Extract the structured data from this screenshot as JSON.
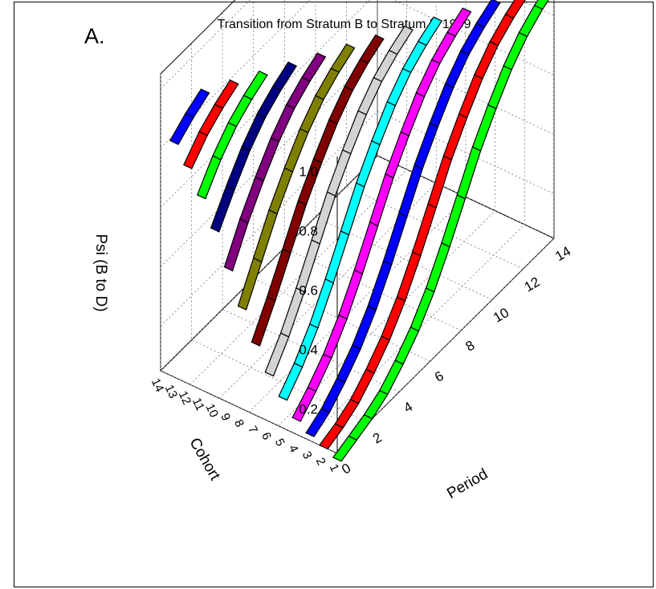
{
  "panel_label": "A.",
  "chart_data": {
    "type": "surface-3d",
    "title": "Transition from Stratum B to Stratum D 1999",
    "xlabel": "Period",
    "ylabel": "Cohort",
    "zlabel": "Psi (B to D)",
    "x_ticks": [
      0,
      2,
      4,
      6,
      8,
      10,
      12,
      14
    ],
    "y_ticks": [
      1,
      2,
      3,
      4,
      5,
      6,
      7,
      8,
      9,
      10,
      11,
      12,
      13,
      14
    ],
    "z_ticks": [
      "0.2",
      "0.4",
      "0.6",
      "0.8",
      "1.0"
    ],
    "xlim": [
      0,
      14
    ],
    "ylim": [
      1,
      14
    ],
    "zlim": [
      0.05,
      1.05
    ],
    "grid": true,
    "series": [
      {
        "cohort": 1,
        "color": "#00ff00",
        "x": [
          0,
          1,
          2,
          3,
          4,
          5,
          6,
          7,
          8,
          9,
          10,
          11,
          12,
          13,
          14
        ],
        "values": [
          0.03,
          0.05,
          0.07,
          0.1,
          0.15,
          0.21,
          0.29,
          0.39,
          0.5,
          0.61,
          0.7,
          0.78,
          0.84,
          0.88,
          0.91
        ]
      },
      {
        "cohort": 2,
        "color": "#ff0000",
        "x": [
          0,
          1,
          2,
          3,
          4,
          5,
          6,
          7,
          8,
          9,
          10,
          11,
          12,
          13
        ],
        "values": [
          0.05,
          0.07,
          0.1,
          0.15,
          0.21,
          0.29,
          0.39,
          0.5,
          0.61,
          0.7,
          0.78,
          0.84,
          0.88,
          0.91
        ]
      },
      {
        "cohort": 3,
        "color": "#0000ff",
        "x": [
          0,
          1,
          2,
          3,
          4,
          5,
          6,
          7,
          8,
          9,
          10,
          11,
          12
        ],
        "values": [
          0.07,
          0.1,
          0.15,
          0.21,
          0.29,
          0.39,
          0.5,
          0.61,
          0.7,
          0.78,
          0.84,
          0.88,
          0.91
        ]
      },
      {
        "cohort": 4,
        "color": "#ff00ff",
        "x": [
          0,
          1,
          2,
          3,
          4,
          5,
          6,
          7,
          8,
          9,
          10,
          11
        ],
        "values": [
          0.1,
          0.15,
          0.21,
          0.29,
          0.39,
          0.5,
          0.61,
          0.7,
          0.78,
          0.84,
          0.88,
          0.91
        ]
      },
      {
        "cohort": 5,
        "color": "#00ffff",
        "x": [
          0,
          1,
          2,
          3,
          4,
          5,
          6,
          7,
          8,
          9,
          10
        ],
        "values": [
          0.15,
          0.21,
          0.29,
          0.39,
          0.5,
          0.61,
          0.7,
          0.78,
          0.84,
          0.88,
          0.91
        ]
      },
      {
        "cohort": 6,
        "color": "#d3d3d3",
        "x": [
          0,
          1,
          2,
          3,
          4,
          5,
          6,
          7,
          8,
          9
        ],
        "values": [
          0.21,
          0.29,
          0.39,
          0.5,
          0.61,
          0.7,
          0.78,
          0.84,
          0.88,
          0.91
        ]
      },
      {
        "cohort": 7,
        "color": "#800000",
        "x": [
          0,
          1,
          2,
          3,
          4,
          5,
          6,
          7,
          8
        ],
        "values": [
          0.29,
          0.39,
          0.5,
          0.61,
          0.7,
          0.78,
          0.84,
          0.88,
          0.91
        ]
      },
      {
        "cohort": 8,
        "color": "#808000",
        "x": [
          0,
          1,
          2,
          3,
          4,
          5,
          6,
          7
        ],
        "values": [
          0.39,
          0.5,
          0.61,
          0.7,
          0.78,
          0.84,
          0.88,
          0.91
        ]
      },
      {
        "cohort": 9,
        "color": "#800080",
        "x": [
          0,
          1,
          2,
          3,
          4,
          5,
          6
        ],
        "values": [
          0.5,
          0.61,
          0.7,
          0.78,
          0.84,
          0.88,
          0.91
        ]
      },
      {
        "cohort": 10,
        "color": "#000080",
        "x": [
          0,
          1,
          2,
          3,
          4,
          5
        ],
        "values": [
          0.61,
          0.7,
          0.78,
          0.84,
          0.88,
          0.91
        ]
      },
      {
        "cohort": 11,
        "color": "#00ff00",
        "x": [
          0,
          1,
          2,
          3,
          4
        ],
        "values": [
          0.7,
          0.78,
          0.84,
          0.88,
          0.91
        ]
      },
      {
        "cohort": 12,
        "color": "#ff0000",
        "x": [
          0,
          1,
          2,
          3
        ],
        "values": [
          0.78,
          0.84,
          0.88,
          0.91
        ]
      },
      {
        "cohort": 13,
        "color": "#0000ff",
        "x": [
          0,
          1,
          2
        ],
        "values": [
          0.84,
          0.88,
          0.91
        ]
      }
    ]
  }
}
